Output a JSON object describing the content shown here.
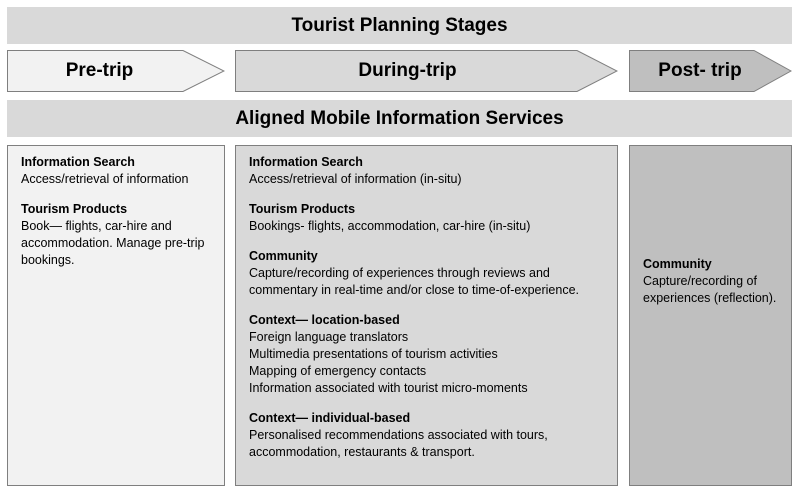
{
  "header_title": "Tourist Planning Stages",
  "stages": [
    {
      "label": "Pre-trip"
    },
    {
      "label": "During-trip"
    },
    {
      "label": "Post- trip"
    }
  ],
  "services_title": "Aligned Mobile Information Services",
  "panels": {
    "pre": [
      {
        "heading": "Information Search",
        "lines": [
          "Access/retrieval of information"
        ]
      },
      {
        "heading": "Tourism Products",
        "lines": [
          "Book— flights, car-hire and",
          "accommodation. Manage pre-trip",
          "bookings."
        ]
      }
    ],
    "during": [
      {
        "heading": "Information Search",
        "lines": [
          "Access/retrieval of information (in-situ)"
        ]
      },
      {
        "heading": "Tourism Products",
        "lines": [
          "Bookings- flights, accommodation, car-hire (in-situ)"
        ]
      },
      {
        "heading": "Community",
        "lines": [
          "Capture/recording of experiences through reviews and",
          "commentary in real-time and/or close to time-of-experience."
        ]
      },
      {
        "heading": "Context— location-based",
        "lines": [
          "Foreign language translators",
          "Multimedia presentations of tourism activities",
          "Mapping of emergency contacts",
          "Information associated with tourist micro-moments"
        ]
      },
      {
        "heading": "Context— individual-based",
        "lines": [
          "Personalised recommendations associated with tours,",
          "accommodation, restaurants & transport."
        ]
      }
    ],
    "post": [
      {
        "heading": "Community",
        "lines": [
          "Capture/recording of",
          "experiences (reflection)."
        ]
      }
    ]
  },
  "colors": {
    "banner": "#d9d9d9",
    "pre_fill": "#f2f2f2",
    "during_fill": "#d9d9d9",
    "post_fill": "#bfbfbf",
    "border": "#7f7f7f"
  }
}
